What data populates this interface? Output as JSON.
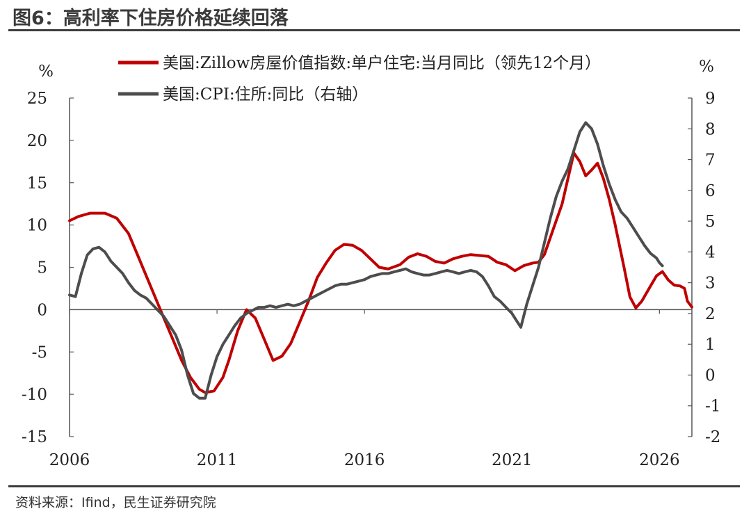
{
  "figure": {
    "title": "图6：高利率下住房价格延续回落",
    "source": "资料来源：Ifind，民生证券研究院"
  },
  "colors": {
    "series_red": "#c00000",
    "series_gray": "#4d4d4d",
    "axis": "#555555"
  },
  "chart_data": {
    "type": "line",
    "title": "图6：高利率下住房价格延续回落",
    "left_unit": "%",
    "right_unit": "%",
    "x_ticks": [
      "2006",
      "2011",
      "2016",
      "2021",
      "2026"
    ],
    "x_range": [
      2006,
      2027.1
    ],
    "y_left": {
      "range": [
        -15,
        25
      ],
      "ticks": [
        "25",
        "20",
        "15",
        "10",
        "5",
        "0",
        "-5",
        "-10",
        "-15"
      ]
    },
    "y_right": {
      "range": [
        -2,
        9
      ],
      "ticks": [
        "9",
        "8",
        "7",
        "6",
        "5",
        "4",
        "3",
        "2",
        "1",
        "0",
        "-1",
        "-2"
      ]
    },
    "legend_position": "top-right",
    "series": [
      {
        "name": "美国:Zillow房屋价值指数:单户住宅:当月同比（领先12个月）",
        "axis": "left",
        "color": "#c00000",
        "points": [
          [
            2006.0,
            10.5
          ],
          [
            2006.3,
            11.0
          ],
          [
            2006.7,
            11.4
          ],
          [
            2007.2,
            11.4
          ],
          [
            2007.6,
            10.8
          ],
          [
            2008.0,
            9.0
          ],
          [
            2008.3,
            6.5
          ],
          [
            2008.6,
            4.0
          ],
          [
            2008.9,
            1.5
          ],
          [
            2009.2,
            -1.0
          ],
          [
            2009.5,
            -3.5
          ],
          [
            2009.8,
            -6.0
          ],
          [
            2010.1,
            -8.0
          ],
          [
            2010.4,
            -9.4
          ],
          [
            2010.6,
            -9.8
          ],
          [
            2010.9,
            -9.6
          ],
          [
            2011.2,
            -8.0
          ],
          [
            2011.4,
            -6.0
          ],
          [
            2011.7,
            -2.5
          ],
          [
            2012.0,
            0.0
          ],
          [
            2012.3,
            -1.0
          ],
          [
            2012.6,
            -3.5
          ],
          [
            2012.9,
            -6.0
          ],
          [
            2013.2,
            -5.5
          ],
          [
            2013.5,
            -4.0
          ],
          [
            2013.8,
            -1.5
          ],
          [
            2014.1,
            1.0
          ],
          [
            2014.4,
            3.8
          ],
          [
            2014.7,
            5.5
          ],
          [
            2015.0,
            7.0
          ],
          [
            2015.3,
            7.7
          ],
          [
            2015.6,
            7.6
          ],
          [
            2015.9,
            7.0
          ],
          [
            2016.2,
            6.0
          ],
          [
            2016.5,
            5.0
          ],
          [
            2016.8,
            4.8
          ],
          [
            2017.2,
            5.3
          ],
          [
            2017.5,
            6.2
          ],
          [
            2017.8,
            6.6
          ],
          [
            2018.1,
            6.3
          ],
          [
            2018.4,
            5.7
          ],
          [
            2018.7,
            5.5
          ],
          [
            2019.0,
            6.0
          ],
          [
            2019.3,
            6.3
          ],
          [
            2019.6,
            6.5
          ],
          [
            2019.9,
            6.4
          ],
          [
            2020.2,
            6.3
          ],
          [
            2020.5,
            5.6
          ],
          [
            2020.8,
            5.3
          ],
          [
            2021.1,
            4.6
          ],
          [
            2021.4,
            5.2
          ],
          [
            2021.7,
            5.5
          ],
          [
            2021.9,
            5.6
          ],
          [
            2022.1,
            6.5
          ],
          [
            2022.4,
            9.5
          ],
          [
            2022.7,
            12.5
          ],
          [
            2022.9,
            15.5
          ],
          [
            2023.1,
            18.5
          ],
          [
            2023.3,
            17.5
          ],
          [
            2023.5,
            15.8
          ],
          [
            2023.7,
            16.5
          ],
          [
            2023.9,
            17.3
          ],
          [
            2024.1,
            15.5
          ],
          [
            2024.3,
            13.0
          ],
          [
            2024.5,
            10.0
          ],
          [
            2024.8,
            5.0
          ],
          [
            2025.0,
            1.5
          ],
          [
            2025.2,
            0.2
          ],
          [
            2025.4,
            1.0
          ],
          [
            2025.7,
            2.8
          ],
          [
            2025.9,
            4.0
          ],
          [
            2026.1,
            4.5
          ],
          [
            2026.3,
            3.5
          ],
          [
            2026.5,
            2.9
          ],
          [
            2026.7,
            2.8
          ],
          [
            2026.85,
            2.5
          ],
          [
            2026.95,
            1.0
          ],
          [
            2027.1,
            0.3
          ]
        ]
      },
      {
        "name": "美国:CPI:住所:同比（右轴）",
        "axis": "right",
        "color": "#4d4d4d",
        "points": [
          [
            2006.0,
            2.6
          ],
          [
            2006.2,
            2.55
          ],
          [
            2006.4,
            3.3
          ],
          [
            2006.6,
            3.9
          ],
          [
            2006.8,
            4.1
          ],
          [
            2007.0,
            4.15
          ],
          [
            2007.2,
            4.0
          ],
          [
            2007.4,
            3.7
          ],
          [
            2007.6,
            3.5
          ],
          [
            2007.8,
            3.3
          ],
          [
            2008.0,
            3.0
          ],
          [
            2008.2,
            2.75
          ],
          [
            2008.4,
            2.6
          ],
          [
            2008.6,
            2.5
          ],
          [
            2008.8,
            2.3
          ],
          [
            2009.0,
            2.1
          ],
          [
            2009.2,
            1.9
          ],
          [
            2009.4,
            1.6
          ],
          [
            2009.6,
            1.3
          ],
          [
            2009.8,
            0.8
          ],
          [
            2010.0,
            0.0
          ],
          [
            2010.2,
            -0.6
          ],
          [
            2010.4,
            -0.75
          ],
          [
            2010.6,
            -0.75
          ],
          [
            2010.8,
            0.0
          ],
          [
            2011.0,
            0.6
          ],
          [
            2011.2,
            1.0
          ],
          [
            2011.4,
            1.3
          ],
          [
            2011.6,
            1.6
          ],
          [
            2011.8,
            1.85
          ],
          [
            2012.0,
            2.0
          ],
          [
            2012.2,
            2.1
          ],
          [
            2012.4,
            2.2
          ],
          [
            2012.6,
            2.2
          ],
          [
            2012.8,
            2.25
          ],
          [
            2013.0,
            2.2
          ],
          [
            2013.2,
            2.25
          ],
          [
            2013.4,
            2.3
          ],
          [
            2013.6,
            2.25
          ],
          [
            2013.8,
            2.3
          ],
          [
            2014.0,
            2.4
          ],
          [
            2014.2,
            2.5
          ],
          [
            2014.4,
            2.6
          ],
          [
            2014.6,
            2.7
          ],
          [
            2014.8,
            2.8
          ],
          [
            2015.0,
            2.9
          ],
          [
            2015.2,
            2.95
          ],
          [
            2015.4,
            2.95
          ],
          [
            2015.6,
            3.0
          ],
          [
            2015.8,
            3.05
          ],
          [
            2016.0,
            3.1
          ],
          [
            2016.2,
            3.2
          ],
          [
            2016.4,
            3.25
          ],
          [
            2016.6,
            3.3
          ],
          [
            2016.8,
            3.3
          ],
          [
            2017.0,
            3.35
          ],
          [
            2017.2,
            3.4
          ],
          [
            2017.4,
            3.45
          ],
          [
            2017.6,
            3.35
          ],
          [
            2017.8,
            3.3
          ],
          [
            2018.0,
            3.25
          ],
          [
            2018.2,
            3.25
          ],
          [
            2018.4,
            3.3
          ],
          [
            2018.6,
            3.35
          ],
          [
            2018.8,
            3.4
          ],
          [
            2019.0,
            3.35
          ],
          [
            2019.2,
            3.3
          ],
          [
            2019.4,
            3.35
          ],
          [
            2019.6,
            3.4
          ],
          [
            2019.8,
            3.35
          ],
          [
            2020.0,
            3.2
          ],
          [
            2020.2,
            2.9
          ],
          [
            2020.4,
            2.55
          ],
          [
            2020.6,
            2.4
          ],
          [
            2020.8,
            2.2
          ],
          [
            2021.0,
            2.0
          ],
          [
            2021.1,
            1.85
          ],
          [
            2021.3,
            1.55
          ],
          [
            2021.5,
            2.3
          ],
          [
            2021.7,
            2.9
          ],
          [
            2021.9,
            3.5
          ],
          [
            2022.1,
            4.3
          ],
          [
            2022.3,
            5.1
          ],
          [
            2022.5,
            5.8
          ],
          [
            2022.7,
            6.3
          ],
          [
            2022.9,
            6.7
          ],
          [
            2023.1,
            7.3
          ],
          [
            2023.3,
            7.9
          ],
          [
            2023.5,
            8.2
          ],
          [
            2023.7,
            8.0
          ],
          [
            2023.9,
            7.5
          ],
          [
            2024.1,
            6.8
          ],
          [
            2024.3,
            6.2
          ],
          [
            2024.5,
            5.7
          ],
          [
            2024.7,
            5.3
          ],
          [
            2024.9,
            5.1
          ],
          [
            2025.1,
            4.8
          ],
          [
            2025.3,
            4.5
          ],
          [
            2025.5,
            4.2
          ],
          [
            2025.7,
            3.95
          ],
          [
            2025.9,
            3.8
          ],
          [
            2026.0,
            3.65
          ],
          [
            2026.1,
            3.55
          ]
        ]
      }
    ]
  }
}
